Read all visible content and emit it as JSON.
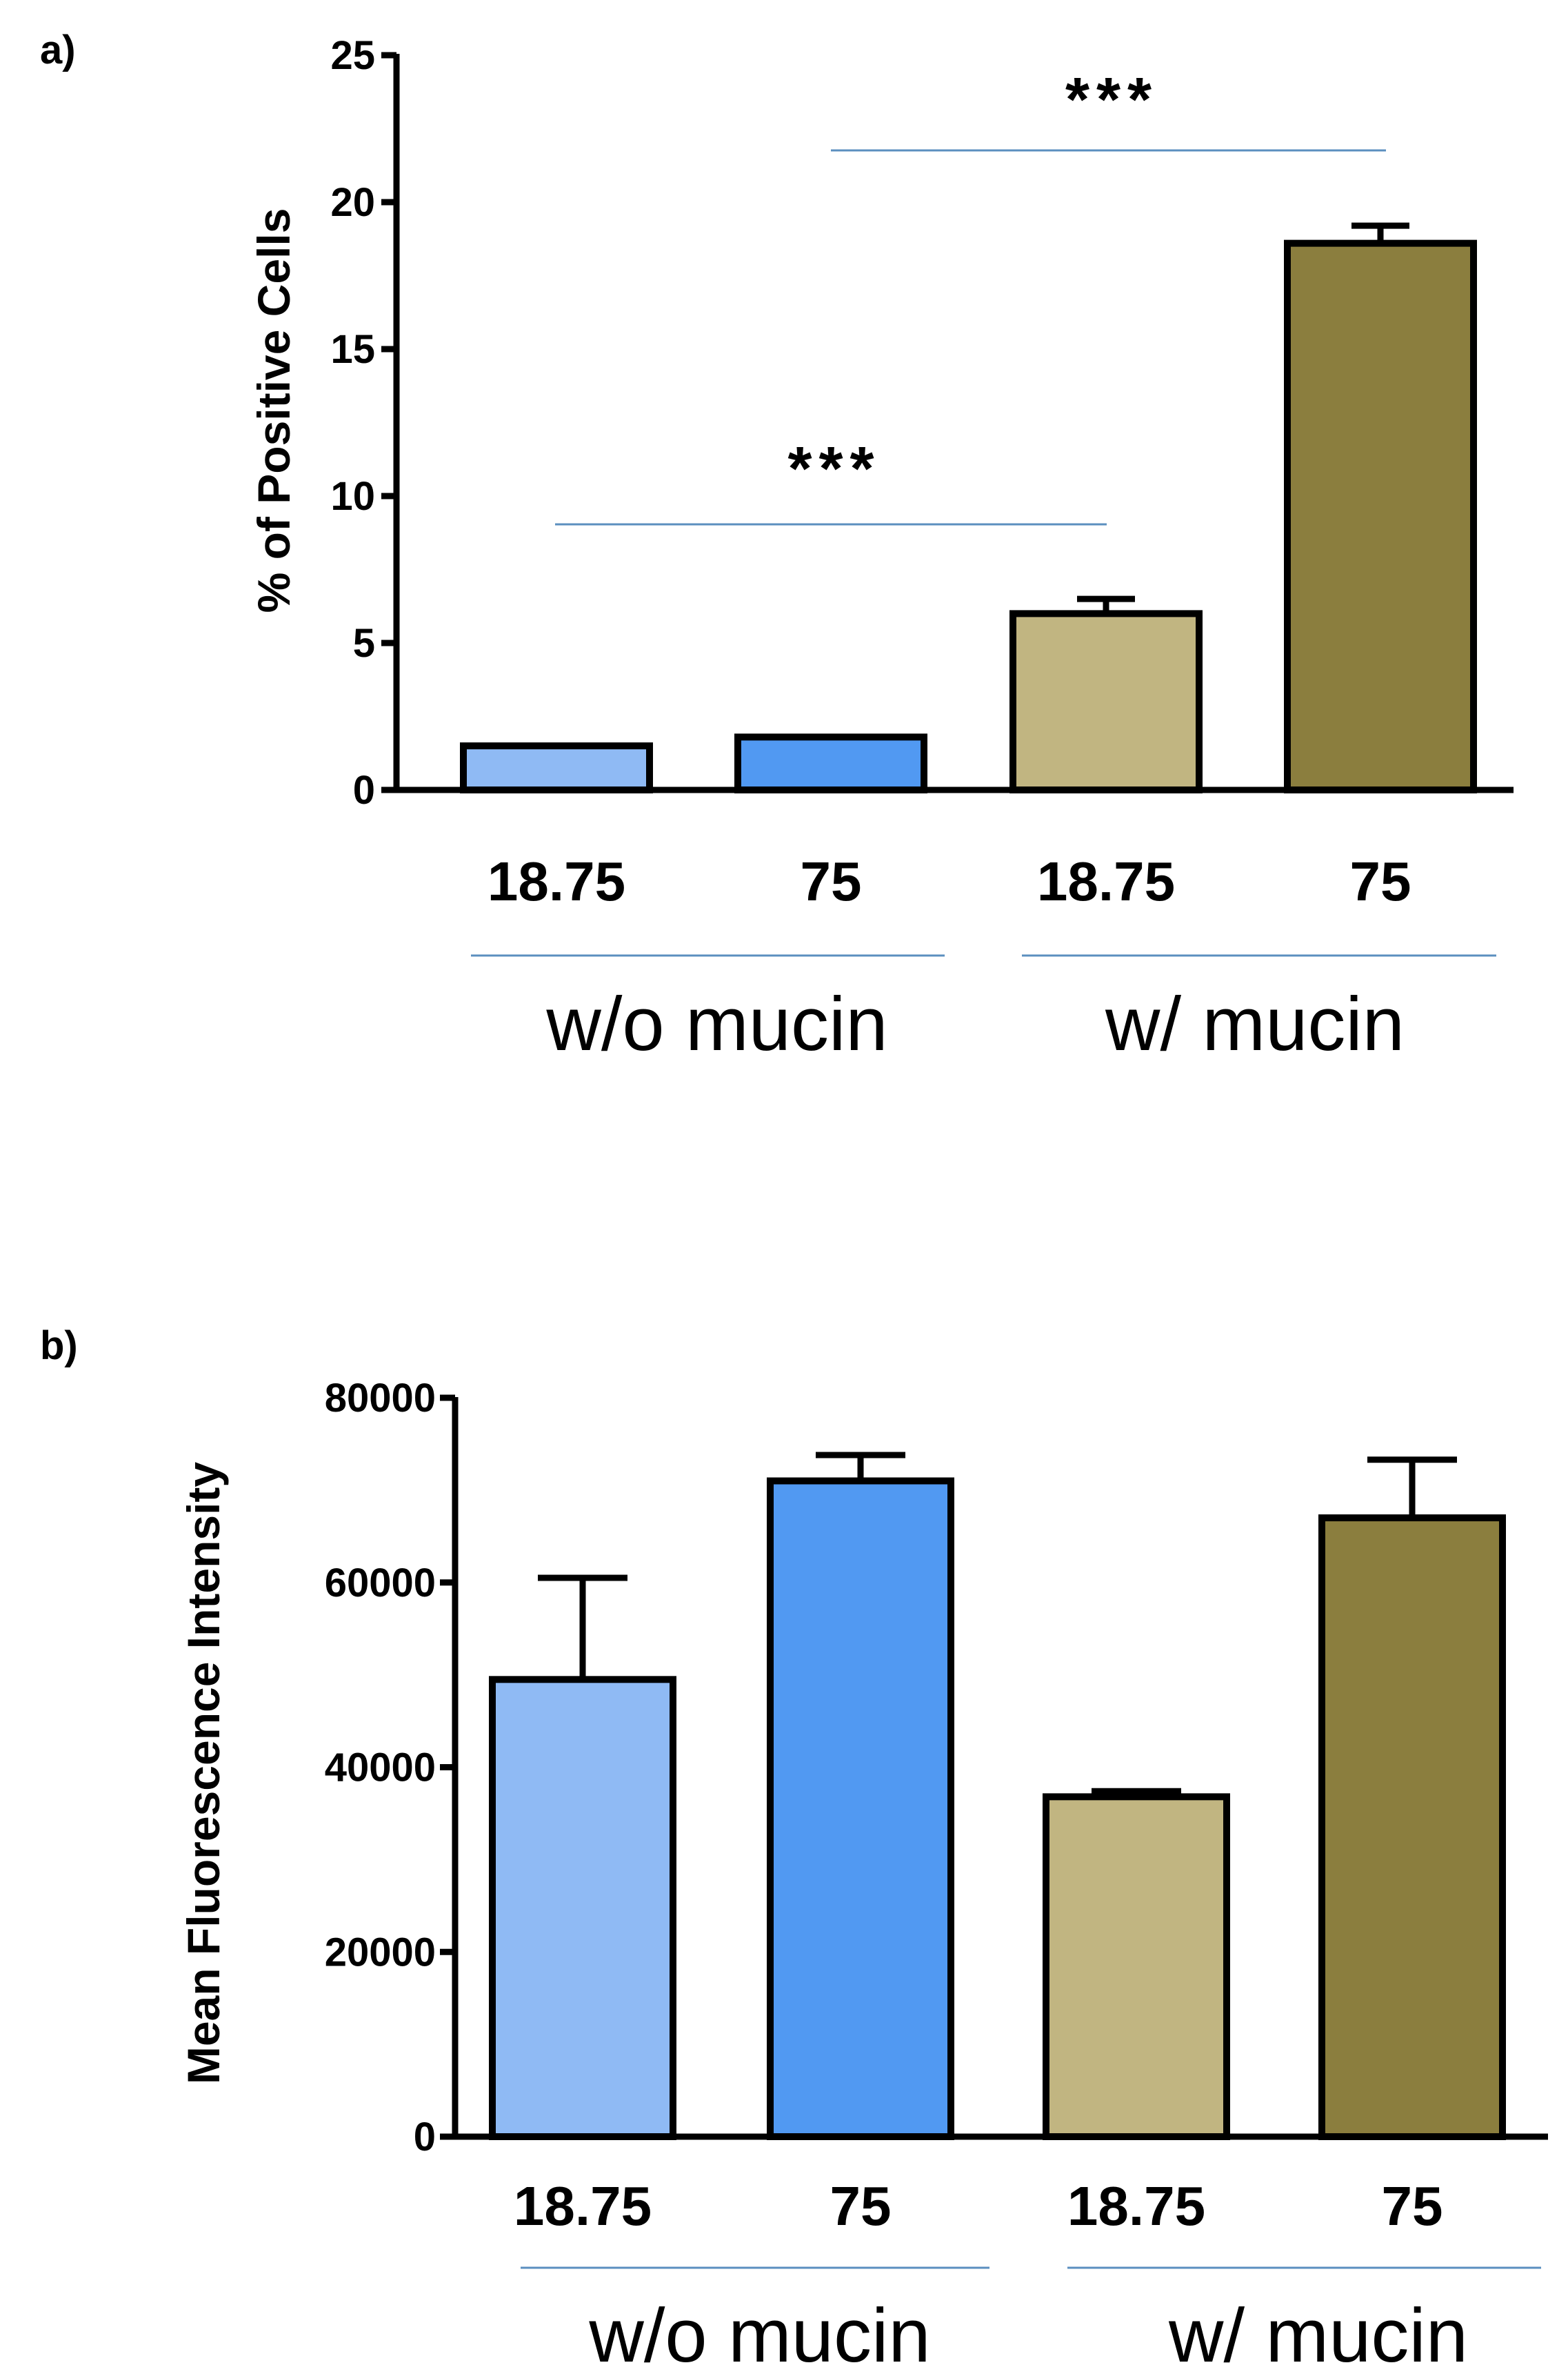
{
  "chart_data": [
    {
      "panel": "a)",
      "type": "bar",
      "ylabel": "% of Positive Cells",
      "ylim": [
        0,
        25
      ],
      "yticks": [
        "0",
        "5",
        "10",
        "15",
        "20",
        "25"
      ],
      "categories": [
        "18.75",
        "75",
        "18.75",
        "75"
      ],
      "groups": [
        {
          "label": "w/o mucin",
          "members": [
            0,
            1
          ]
        },
        {
          "label": "w/ mucin",
          "members": [
            2,
            3
          ]
        }
      ],
      "values": [
        1.5,
        1.8,
        6.0,
        18.6
      ],
      "errors": [
        0.0,
        0.0,
        0.5,
        0.6
      ],
      "colors": [
        "#8fbaf4",
        "#5199f2",
        "#c1b581",
        "#8b7e3e"
      ],
      "significance": [
        {
          "from": 0,
          "to": 2,
          "label": "***"
        },
        {
          "from": 1,
          "to": 3,
          "label": "***"
        }
      ],
      "grid": false
    },
    {
      "panel": "b)",
      "type": "bar",
      "ylabel": "Mean Fluorescence Intensity",
      "ylim": [
        0,
        80000
      ],
      "yticks": [
        "0",
        "20000",
        "40000",
        "60000",
        "80000"
      ],
      "categories": [
        "18.75",
        "75",
        "18.75",
        "75"
      ],
      "groups": [
        {
          "label": "w/o mucin",
          "members": [
            0,
            1
          ]
        },
        {
          "label": "w/ mucin",
          "members": [
            2,
            3
          ]
        }
      ],
      "values": [
        49500,
        71000,
        36800,
        67000
      ],
      "errors": [
        11000,
        2800,
        600,
        6300
      ],
      "colors": [
        "#8fbaf4",
        "#5199f2",
        "#c1b581",
        "#8b7e3e"
      ],
      "grid": false
    }
  ]
}
